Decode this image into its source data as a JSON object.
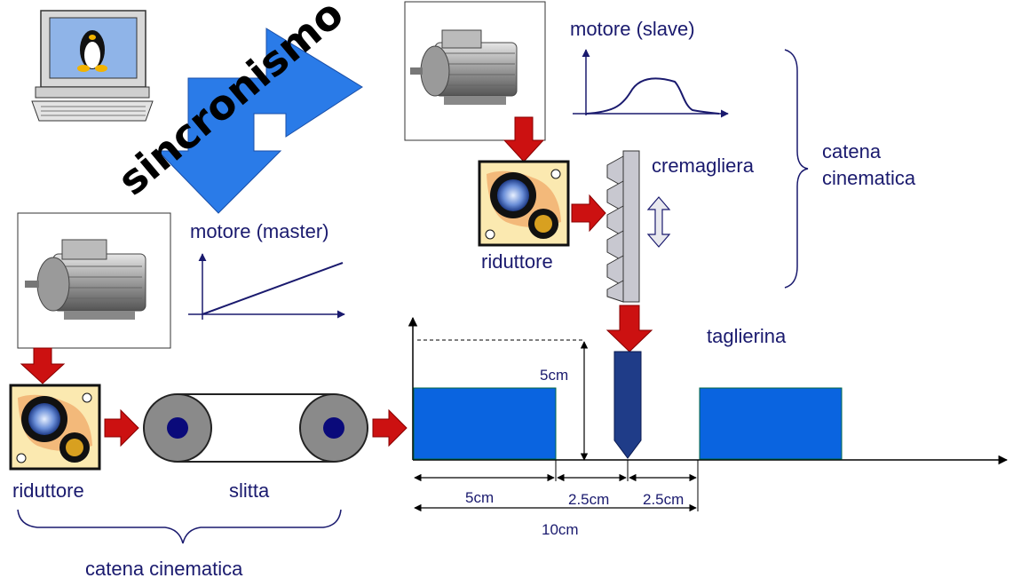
{
  "labels": {
    "sincronismo": "sincronismo",
    "motore_slave": "motore (slave)",
    "motore_master": "motore (master)",
    "cremagliera": "cremagliera",
    "riduttore_top": "riduttore",
    "riduttore_bottom": "riduttore",
    "slitta": "slitta",
    "taglierina": "taglierina",
    "catena_right_1": "catena",
    "catena_right_2": "cinematica",
    "catena_bottom": "catena cinematica"
  },
  "dimensions": {
    "height": "5cm",
    "seg1": "5cm",
    "seg2": "2.5cm",
    "seg3": "2.5cm",
    "total": "10cm"
  },
  "colors": {
    "text": "#1a1a6e",
    "arrow_red": "#cc1111",
    "blue_block": "#0a64e0",
    "blade": "#1f3c88",
    "big_arrow": "#2a7be8",
    "roller_gray": "#8a8a8a",
    "roller_core": "#0a0a7a"
  },
  "icons": [
    "linux-computer-icon",
    "electric-motor-icon",
    "gear-reducer-icon",
    "rack-icon"
  ]
}
